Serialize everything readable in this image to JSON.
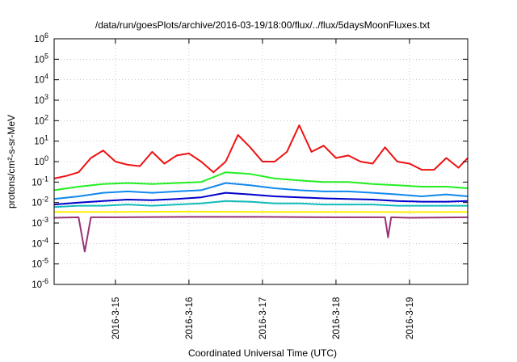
{
  "chart_data": {
    "type": "line",
    "title": "/data/run/goesPlots/archive/2016-03-19/18:00/flux/../flux/5daysMoonFluxes.txt",
    "xlabel": "Coordinated Universal Time (UTC)",
    "ylabel": "protons/cm²-s-sr-MeV",
    "yscale": "log",
    "ylim": [
      1e-06,
      1000000.0
    ],
    "xlim": [
      "2016-03-14 04:00",
      "2016-03-19 19:00"
    ],
    "y_ticks": [
      {
        "base": "10",
        "exp": "-6",
        "value": 1e-06
      },
      {
        "base": "10",
        "exp": "-5",
        "value": 1e-05
      },
      {
        "base": "10",
        "exp": "-4",
        "value": 0.0001
      },
      {
        "base": "10",
        "exp": "-3",
        "value": 0.001
      },
      {
        "base": "10",
        "exp": "-2",
        "value": 0.01
      },
      {
        "base": "10",
        "exp": "-1",
        "value": 0.1
      },
      {
        "base": "10",
        "exp": "0",
        "value": 1
      },
      {
        "base": "10",
        "exp": "1",
        "value": 10
      },
      {
        "base": "10",
        "exp": "2",
        "value": 100
      },
      {
        "base": "10",
        "exp": "3",
        "value": 1000
      },
      {
        "base": "10",
        "exp": "4",
        "value": 10000
      },
      {
        "base": "10",
        "exp": "5",
        "value": 100000
      },
      {
        "base": "10",
        "exp": "6",
        "value": 1000000
      }
    ],
    "x_ticks": [
      {
        "label": "2016-3-15",
        "value": "2016-03-15 00:00"
      },
      {
        "label": "2016-3-16",
        "value": "2016-03-16 00:00"
      },
      {
        "label": "2016-3-17",
        "value": "2016-03-17 00:00"
      },
      {
        "label": "2016-3-18",
        "value": "2016-03-18 00:00"
      },
      {
        "label": "2016-3-19",
        "value": "2016-03-19 00:00"
      }
    ],
    "grid": true,
    "series": [
      {
        "color": "#ee1111",
        "x": [
          "2016-03-14 04:00",
          "2016-03-14 08:00",
          "2016-03-14 12:00",
          "2016-03-14 16:00",
          "2016-03-14 20:00",
          "2016-03-15 00:00",
          "2016-03-15 04:00",
          "2016-03-15 08:00",
          "2016-03-15 12:00",
          "2016-03-15 16:00",
          "2016-03-15 20:00",
          "2016-03-16 00:00",
          "2016-03-16 04:00",
          "2016-03-16 08:00",
          "2016-03-16 12:00",
          "2016-03-16 16:00",
          "2016-03-16 20:00",
          "2016-03-17 00:00",
          "2016-03-17 04:00",
          "2016-03-17 08:00",
          "2016-03-17 12:00",
          "2016-03-17 16:00",
          "2016-03-17 20:00",
          "2016-03-18 00:00",
          "2016-03-18 04:00",
          "2016-03-18 08:00",
          "2016-03-18 12:00",
          "2016-03-18 16:00",
          "2016-03-18 20:00",
          "2016-03-19 00:00",
          "2016-03-19 04:00",
          "2016-03-19 08:00",
          "2016-03-19 12:00",
          "2016-03-19 16:00",
          "2016-03-19 19:00"
        ],
        "values": [
          0.15,
          0.2,
          0.3,
          1.5,
          3.5,
          1.0,
          0.7,
          0.6,
          3.0,
          0.8,
          2.0,
          2.5,
          1.0,
          0.3,
          1.0,
          20.0,
          5.0,
          1.0,
          1.0,
          3.0,
          60.0,
          3.0,
          6.0,
          1.5,
          2.0,
          1.0,
          0.8,
          5.0,
          1.0,
          0.8,
          0.4,
          0.4,
          1.5,
          0.5,
          1.5
        ]
      },
      {
        "color": "#22ee22",
        "x": [
          "2016-03-14 04:00",
          "2016-03-14 12:00",
          "2016-03-14 20:00",
          "2016-03-15 04:00",
          "2016-03-15 12:00",
          "2016-03-15 20:00",
          "2016-03-16 04:00",
          "2016-03-16 12:00",
          "2016-03-16 20:00",
          "2016-03-17 04:00",
          "2016-03-17 12:00",
          "2016-03-17 20:00",
          "2016-03-18 04:00",
          "2016-03-18 12:00",
          "2016-03-18 20:00",
          "2016-03-19 04:00",
          "2016-03-19 12:00",
          "2016-03-19 19:00"
        ],
        "values": [
          0.04,
          0.06,
          0.08,
          0.09,
          0.08,
          0.09,
          0.1,
          0.3,
          0.25,
          0.15,
          0.12,
          0.1,
          0.1,
          0.08,
          0.07,
          0.06,
          0.06,
          0.05
        ]
      },
      {
        "color": "#1188ee",
        "x": [
          "2016-03-14 04:00",
          "2016-03-14 12:00",
          "2016-03-14 20:00",
          "2016-03-15 04:00",
          "2016-03-15 12:00",
          "2016-03-15 20:00",
          "2016-03-16 04:00",
          "2016-03-16 12:00",
          "2016-03-16 20:00",
          "2016-03-17 04:00",
          "2016-03-17 12:00",
          "2016-03-17 20:00",
          "2016-03-18 04:00",
          "2016-03-18 12:00",
          "2016-03-18 20:00",
          "2016-03-19 04:00",
          "2016-03-19 12:00",
          "2016-03-19 19:00"
        ],
        "values": [
          0.015,
          0.02,
          0.03,
          0.035,
          0.03,
          0.035,
          0.04,
          0.09,
          0.07,
          0.05,
          0.04,
          0.035,
          0.035,
          0.03,
          0.025,
          0.02,
          0.025,
          0.02
        ]
      },
      {
        "color": "#0000cc",
        "x": [
          "2016-03-14 04:00",
          "2016-03-14 12:00",
          "2016-03-14 20:00",
          "2016-03-15 04:00",
          "2016-03-15 12:00",
          "2016-03-15 20:00",
          "2016-03-16 04:00",
          "2016-03-16 12:00",
          "2016-03-16 20:00",
          "2016-03-17 04:00",
          "2016-03-17 12:00",
          "2016-03-17 20:00",
          "2016-03-18 04:00",
          "2016-03-18 12:00",
          "2016-03-18 20:00",
          "2016-03-19 04:00",
          "2016-03-19 12:00",
          "2016-03-19 19:00"
        ],
        "values": [
          0.008,
          0.01,
          0.012,
          0.014,
          0.013,
          0.015,
          0.018,
          0.03,
          0.025,
          0.02,
          0.018,
          0.016,
          0.015,
          0.014,
          0.012,
          0.011,
          0.011,
          0.012
        ]
      },
      {
        "color": "#11bbbb",
        "x": [
          "2016-03-14 04:00",
          "2016-03-14 12:00",
          "2016-03-14 20:00",
          "2016-03-15 04:00",
          "2016-03-15 12:00",
          "2016-03-15 20:00",
          "2016-03-16 04:00",
          "2016-03-16 12:00",
          "2016-03-16 20:00",
          "2016-03-17 04:00",
          "2016-03-17 12:00",
          "2016-03-17 20:00",
          "2016-03-18 04:00",
          "2016-03-18 12:00",
          "2016-03-18 20:00",
          "2016-03-19 04:00",
          "2016-03-19 12:00",
          "2016-03-19 19:00"
        ],
        "values": [
          0.006,
          0.007,
          0.007,
          0.008,
          0.007,
          0.008,
          0.009,
          0.012,
          0.011,
          0.009,
          0.009,
          0.008,
          0.008,
          0.008,
          0.007,
          0.007,
          0.007,
          0.007
        ]
      },
      {
        "color": "#ffee00",
        "x": [
          "2016-03-14 04:00",
          "2016-03-15 00:00",
          "2016-03-16 00:00",
          "2016-03-17 00:00",
          "2016-03-18 00:00",
          "2016-03-19 00:00",
          "2016-03-19 19:00"
        ],
        "values": [
          0.0035,
          0.0035,
          0.0036,
          0.0035,
          0.0035,
          0.0034,
          0.0035
        ]
      },
      {
        "color": "#993377",
        "x": [
          "2016-03-14 04:00",
          "2016-03-14 12:00",
          "2016-03-14 14:00",
          "2016-03-14 16:00",
          "2016-03-15 00:00",
          "2016-03-16 00:00",
          "2016-03-17 00:00",
          "2016-03-18 00:00",
          "2016-03-18 16:00",
          "2016-03-18 17:00",
          "2016-03-18 18:00",
          "2016-03-19 00:00",
          "2016-03-19 19:00"
        ],
        "values": [
          0.0018,
          0.0019,
          4e-05,
          0.0019,
          0.0019,
          0.002,
          0.002,
          0.0019,
          0.0019,
          0.0002,
          0.0019,
          0.0018,
          0.0019
        ]
      }
    ]
  }
}
